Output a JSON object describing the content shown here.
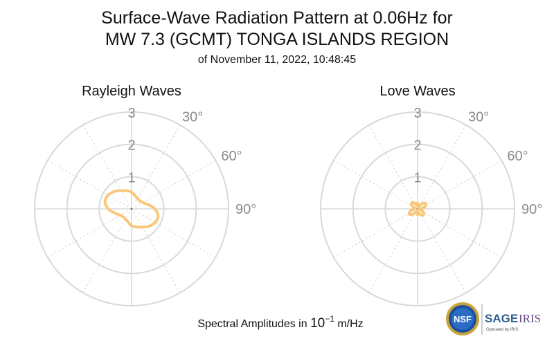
{
  "title_line1": "Surface-Wave Radiation Pattern at 0.06Hz for",
  "title_line2": "MW 7.3 (GCMT) TONGA ISLANDS REGION",
  "subtitle": "of November 11, 2022, 10:48:45",
  "footer": {
    "prefix": "Spectral Amplitudes in ",
    "base": "10",
    "exponent": "−1",
    "unit": " m/Hz"
  },
  "logos": {
    "nsf_text": "NSF",
    "sage_text": "SAGE",
    "iris_text": "IRIS",
    "operated_text": "Operated by IRIS"
  },
  "colors": {
    "pattern": "#f9c77c",
    "grid": "#d9d9d9",
    "tick": "#8a8a8a"
  },
  "chart_data": [
    {
      "type": "polar",
      "title": "Rayleigh Waves",
      "r_ticks": [
        "1",
        "2",
        "3"
      ],
      "r_range": [
        0,
        3
      ],
      "theta_ticks": [
        "30°",
        "60°",
        "90°"
      ],
      "theta_direction": "clockwise from north",
      "series": [
        {
          "theta_deg": [
            0,
            15,
            30,
            45,
            60,
            75,
            90,
            105,
            120,
            135,
            150,
            165,
            180,
            195,
            210,
            225,
            240,
            255,
            270,
            285,
            300,
            315,
            330,
            345
          ],
          "r": [
            0.52,
            0.42,
            0.37,
            0.36,
            0.4,
            0.52,
            0.72,
            0.85,
            0.84,
            0.76,
            0.65,
            0.58,
            0.52,
            0.42,
            0.37,
            0.36,
            0.4,
            0.52,
            0.72,
            0.85,
            0.84,
            0.76,
            0.65,
            0.58
          ]
        }
      ]
    },
    {
      "type": "polar",
      "title": "Love Waves",
      "r_ticks": [
        "1",
        "2",
        "3"
      ],
      "r_range": [
        0,
        3
      ],
      "theta_ticks": [
        "30°",
        "60°",
        "90°"
      ],
      "theta_direction": "clockwise from north",
      "series": [
        {
          "theta_deg": [
            0,
            15,
            30,
            45,
            60,
            75,
            90,
            105,
            120,
            135,
            150,
            165,
            180,
            195,
            210,
            225,
            240,
            255,
            270,
            285,
            300,
            315,
            330,
            345
          ],
          "r": [
            0.18,
            0.05,
            0.12,
            0.25,
            0.3,
            0.22,
            0.1,
            0.08,
            0.2,
            0.26,
            0.22,
            0.12,
            0.18,
            0.05,
            0.12,
            0.25,
            0.3,
            0.22,
            0.1,
            0.08,
            0.2,
            0.26,
            0.22,
            0.12
          ]
        }
      ]
    }
  ]
}
